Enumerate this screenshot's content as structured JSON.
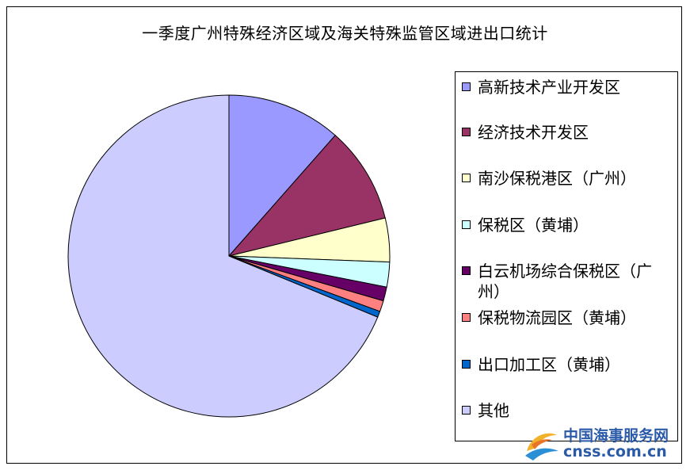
{
  "chart_data": {
    "type": "pie",
    "title": "一季度广州特殊经济区域及海关特殊监管区域进出口统计",
    "categories": [
      "高新技术产业开发区",
      "经济技术开发区",
      "南沙保税港区（广州）",
      "保税区（黄埔）",
      "白云机场综合保税区（广州）",
      "保税物流园区（黄埔）",
      "出口加工区（黄埔）",
      "其他"
    ],
    "values": [
      11.5,
      9.7,
      4.4,
      2.5,
      1.4,
      1.1,
      0.6,
      68.8
    ],
    "colors": [
      "#9999ff",
      "#993366",
      "#ffffcc",
      "#ccffff",
      "#660066",
      "#ff8080",
      "#0066cc",
      "#ccccff"
    ],
    "start_angle_deg": 0,
    "direction": "clockwise",
    "legend_position": "right"
  },
  "legend": {
    "items": [
      {
        "label": "高新技术产业开发区",
        "color": "#9999ff"
      },
      {
        "label": "经济技术开发区",
        "color": "#993366"
      },
      {
        "label": "南沙保税港区（广州）",
        "color": "#ffffcc"
      },
      {
        "label": "保税区（黄埔）",
        "color": "#ccffff"
      },
      {
        "label": "白云机场综合保税区（广州）",
        "color": "#660066"
      },
      {
        "label": "保税物流园区（黄埔）",
        "color": "#ff8080"
      },
      {
        "label": "出口加工区（黄埔）",
        "color": "#0066cc"
      },
      {
        "label": "其他",
        "color": "#ccccff"
      }
    ]
  },
  "watermark": {
    "cn_text": "中国海事服务网",
    "en_text": "cnss.com.cn"
  }
}
